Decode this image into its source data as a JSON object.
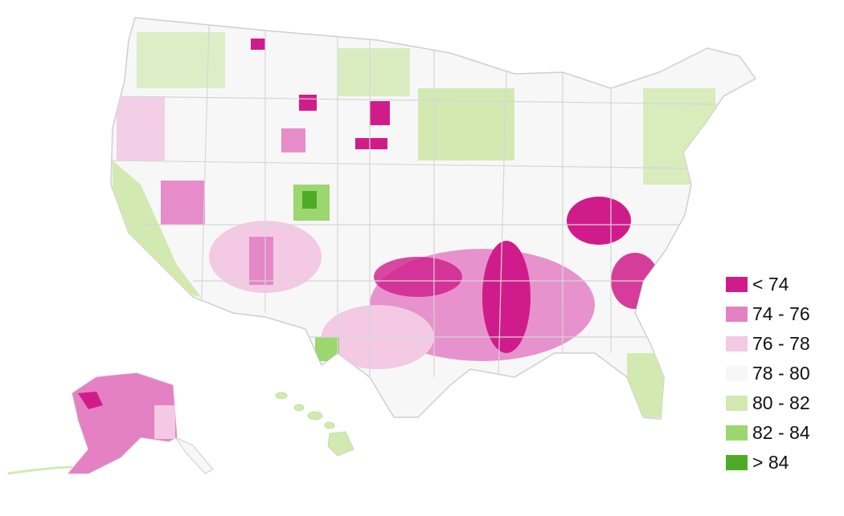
{
  "legend": {
    "items": [
      {
        "label": "< 74",
        "color": "#d01c8b"
      },
      {
        "label": "74 - 76",
        "color": "#e480c4"
      },
      {
        "label": "76 - 78",
        "color": "#f3c9e4"
      },
      {
        "label": "78 - 80",
        "color": "#f7f7f7"
      },
      {
        "label": "80 - 82",
        "color": "#d2eab2"
      },
      {
        "label": "82 - 84",
        "color": "#9cd66f"
      },
      {
        "label": "> 84",
        "color": "#4dac26"
      }
    ]
  },
  "map": {
    "outline_color": "#cfcfcf",
    "base_color": "#f7f7f7"
  }
}
